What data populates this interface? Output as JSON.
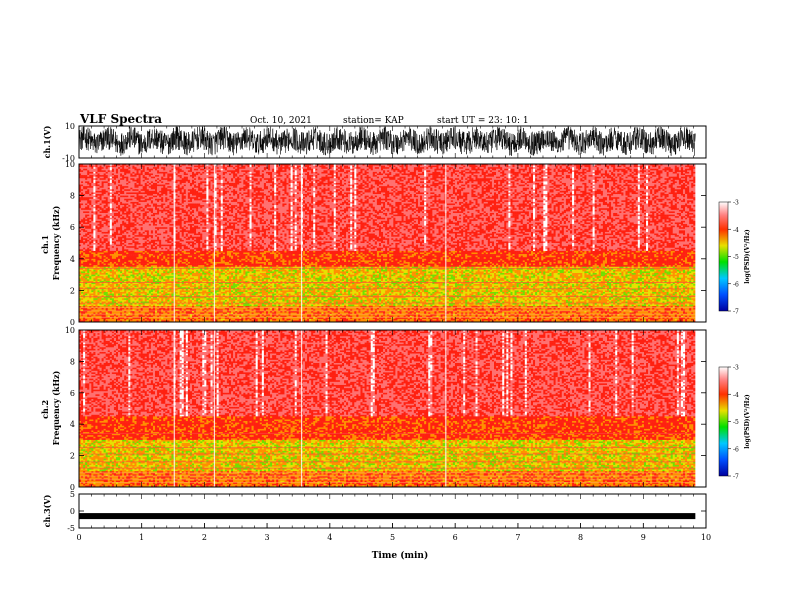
{
  "header": {
    "title": "VLF Spectra",
    "date": "Oct. 10, 2021",
    "station": "station= KAP",
    "start": "start  UT  =   23: 10: 1"
  },
  "chart_data": [
    {
      "type": "line",
      "panel": "ch1-waveform",
      "ylabel": "ch.1(V)",
      "ylim": [
        -10,
        10
      ],
      "yticks": [
        "10",
        "-10"
      ],
      "x_range_min": [
        0,
        9.83
      ],
      "description_values": "dense noise waveform mostly between -6 and +8 V"
    },
    {
      "type": "heatmap",
      "panel": "ch1-spectrogram",
      "ylabel": "ch.1\nFrequency (kHz)",
      "ylim": [
        0,
        10
      ],
      "yticks": [
        "0",
        "2",
        "4",
        "6",
        "8",
        "10"
      ],
      "xlim": [
        0,
        10
      ],
      "colorbar": {
        "label": "log(PSD)(V²/Hz)",
        "range": [
          -7,
          -3
        ],
        "ticks": [
          "-3",
          "-4",
          "-5",
          "-6",
          "-7"
        ]
      },
      "bands": [
        {
          "from_khz": 0.0,
          "to_khz": 1.0,
          "level": "mixed orange/green lines"
        },
        {
          "from_khz": 1.0,
          "to_khz": 3.5,
          "level": -5.0
        },
        {
          "from_khz": 3.5,
          "to_khz": 4.5,
          "level": -4.0
        },
        {
          "from_khz": 4.5,
          "to_khz": 10.0,
          "level": -3.8
        }
      ]
    },
    {
      "type": "heatmap",
      "panel": "ch2-spectrogram",
      "ylabel": "ch.2\nFrequency (kHz)",
      "ylim": [
        0,
        10
      ],
      "yticks": [
        "0",
        "2",
        "4",
        "6",
        "8",
        "10"
      ],
      "xlim": [
        0,
        10
      ],
      "colorbar": {
        "label": "log(PSD)(V²/Hz)",
        "range": [
          -7,
          -3
        ],
        "ticks": [
          "-3",
          "-4",
          "-5",
          "-6",
          "-7"
        ]
      },
      "bands": [
        {
          "from_khz": 0.0,
          "to_khz": 1.0,
          "level": "mixed orange/green lines"
        },
        {
          "from_khz": 1.0,
          "to_khz": 3.0,
          "level": -5.0
        },
        {
          "from_khz": 3.0,
          "to_khz": 4.0,
          "level": -4.0
        },
        {
          "from_khz": 4.0,
          "to_khz": 10.0,
          "level": -3.8
        }
      ]
    },
    {
      "type": "line",
      "panel": "ch3-waveform",
      "ylabel": "ch.3(V)",
      "ylim": [
        -5,
        5
      ],
      "yticks": [
        "5",
        "0",
        "-5"
      ],
      "level_v": -1.5,
      "xlabel": "Time (min)",
      "xticks": [
        "0",
        "1",
        "2",
        "3",
        "4",
        "5",
        "6",
        "7",
        "8",
        "9",
        "10"
      ]
    }
  ]
}
